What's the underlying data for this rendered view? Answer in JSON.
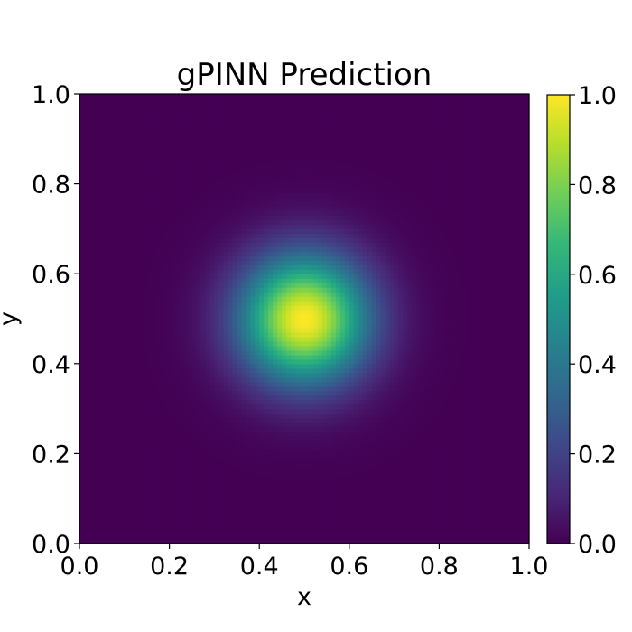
{
  "chart_data": {
    "type": "heatmap",
    "title": "gPINN Prediction",
    "xlabel": "x",
    "ylabel": "y",
    "xlim": [
      0.0,
      1.0
    ],
    "ylim": [
      0.0,
      1.0
    ],
    "x_ticks": [
      "0.0",
      "0.2",
      "0.4",
      "0.6",
      "0.8",
      "1.0"
    ],
    "y_ticks": [
      "0.0",
      "0.2",
      "0.4",
      "0.6",
      "0.8",
      "1.0"
    ],
    "colorbar": {
      "colormap": "viridis",
      "range": [
        0.0,
        1.0
      ],
      "ticks": [
        "0.0",
        "0.2",
        "0.4",
        "0.6",
        "0.8",
        "1.0"
      ]
    },
    "field": {
      "shape": "gaussian",
      "center": [
        0.5,
        0.5
      ],
      "peak_value": 1.0,
      "sigma": 0.1,
      "grid_resolution": 100
    },
    "grid": false,
    "colors": {
      "viridis_stops": [
        "#440154",
        "#482878",
        "#3e4989",
        "#31688e",
        "#26828e",
        "#1f9e89",
        "#35b779",
        "#6ece58",
        "#b5de2b",
        "#fde725"
      ]
    }
  }
}
